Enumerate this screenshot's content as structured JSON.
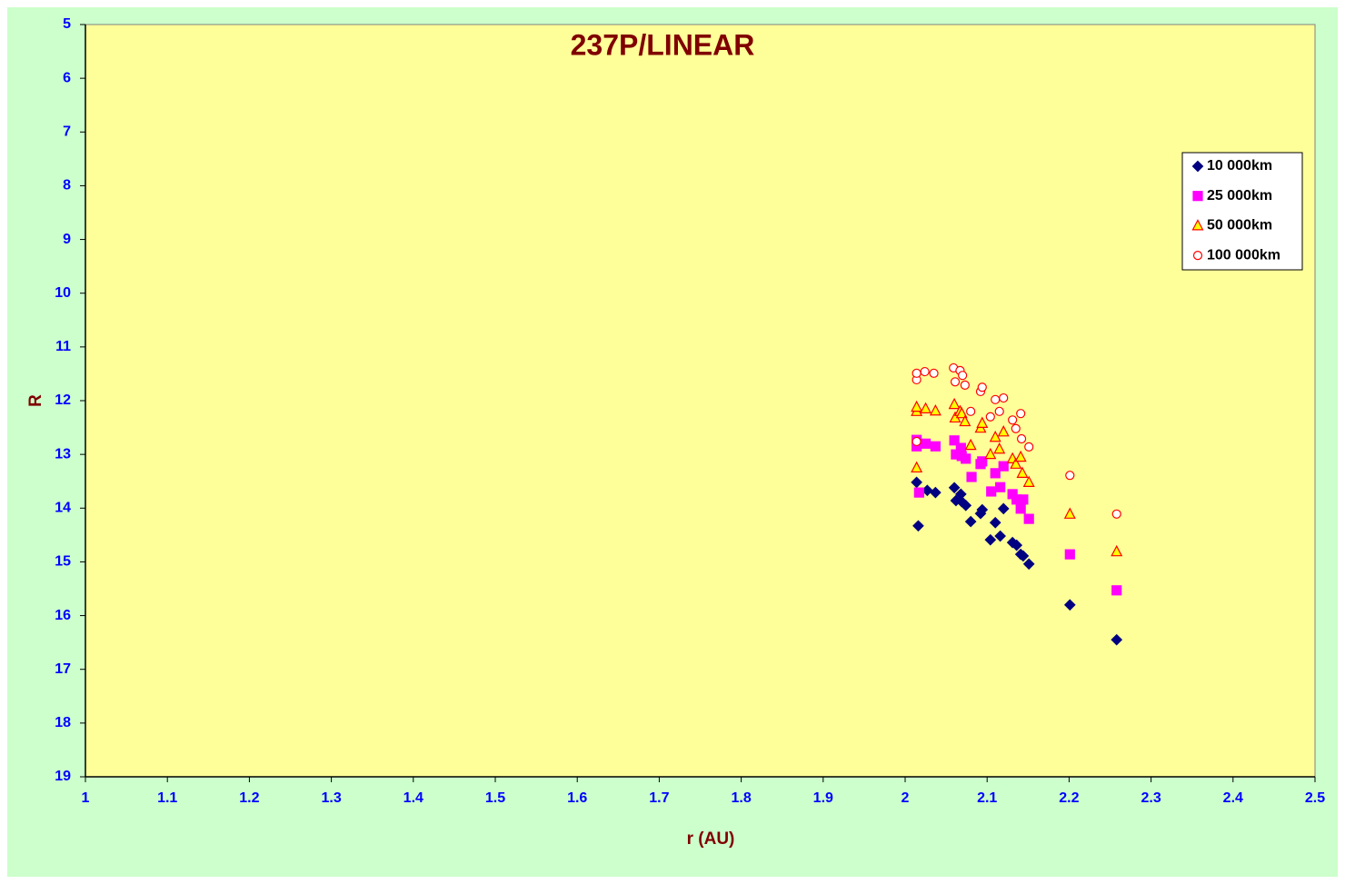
{
  "chart_data": {
    "type": "scatter",
    "title": "237P/LINEAR",
    "xlabel": "r (AU)",
    "ylabel": "R",
    "xlim": [
      1,
      2.5
    ],
    "xticks": [
      1,
      1.1,
      1.2,
      1.3,
      1.4,
      1.5,
      1.6,
      1.7,
      1.8,
      1.9,
      2,
      2.1,
      2.2,
      2.3,
      2.4,
      2.5
    ],
    "ylim": [
      5,
      19
    ],
    "yticks": [
      5,
      6,
      7,
      8,
      9,
      10,
      11,
      12,
      13,
      14,
      15,
      16,
      17,
      18,
      19
    ],
    "y_inverted": true,
    "legend": "upper right",
    "series": [
      {
        "name": "10 000km",
        "marker": "diamond",
        "color": "#000080",
        "edgecolor": "#000080",
        "x": [
          2.014,
          2.016,
          2.027,
          2.037,
          2.06,
          2.062,
          2.068,
          2.069,
          2.074,
          2.08,
          2.092,
          2.094,
          2.104,
          2.11,
          2.116,
          2.12,
          2.131,
          2.136,
          2.141,
          2.144,
          2.151,
          2.201,
          2.258
        ],
        "values": [
          13.52,
          14.33,
          13.67,
          13.71,
          13.62,
          13.86,
          13.74,
          13.88,
          13.95,
          14.25,
          14.1,
          14.03,
          14.59,
          14.27,
          14.52,
          14.01,
          14.64,
          14.69,
          14.86,
          14.89,
          15.04,
          15.8,
          16.45
        ]
      },
      {
        "name": "25 000km",
        "marker": "square",
        "color": "#ff00ff",
        "edgecolor": "#ff00ff",
        "x": [
          2.014,
          2.014,
          2.017,
          2.025,
          2.037,
          2.06,
          2.062,
          2.068,
          2.069,
          2.074,
          2.081,
          2.092,
          2.094,
          2.105,
          2.11,
          2.116,
          2.12,
          2.131,
          2.136,
          2.141,
          2.144,
          2.151,
          2.201,
          2.258
        ],
        "values": [
          12.85,
          12.73,
          13.71,
          12.8,
          12.85,
          12.74,
          13.0,
          12.88,
          13.03,
          13.08,
          13.42,
          13.18,
          13.13,
          13.69,
          13.35,
          13.61,
          13.22,
          13.74,
          13.84,
          14.01,
          13.84,
          14.2,
          14.86,
          15.53
        ]
      },
      {
        "name": "50 000km",
        "marker": "triangle",
        "color": "#ffff00",
        "edgecolor": "#ff0000",
        "x": [
          2.014,
          2.014,
          2.014,
          2.025,
          2.037,
          2.06,
          2.061,
          2.067,
          2.069,
          2.073,
          2.08,
          2.092,
          2.094,
          2.104,
          2.11,
          2.115,
          2.12,
          2.131,
          2.135,
          2.141,
          2.143,
          2.151,
          2.201,
          2.258
        ],
        "values": [
          12.2,
          13.25,
          12.12,
          12.15,
          12.19,
          12.07,
          12.32,
          12.2,
          12.24,
          12.39,
          12.83,
          12.51,
          12.42,
          13.0,
          12.68,
          12.9,
          12.58,
          13.08,
          13.18,
          13.05,
          13.35,
          13.52,
          14.11,
          14.81
        ]
      },
      {
        "name": "100 000km",
        "marker": "circle",
        "color": "#ffffff",
        "edgecolor": "#ff0000",
        "x": [
          2.014,
          2.014,
          2.014,
          2.024,
          2.035,
          2.059,
          2.061,
          2.067,
          2.07,
          2.073,
          2.08,
          2.092,
          2.094,
          2.104,
          2.11,
          2.115,
          2.12,
          2.131,
          2.135,
          2.141,
          2.142,
          2.151,
          2.201,
          2.258
        ],
        "values": [
          11.61,
          11.49,
          12.76,
          11.46,
          11.49,
          11.39,
          11.65,
          11.44,
          11.53,
          11.71,
          12.2,
          11.83,
          11.75,
          12.3,
          11.98,
          12.2,
          11.95,
          12.36,
          12.52,
          12.24,
          12.71,
          12.86,
          13.39,
          14.11
        ]
      }
    ]
  }
}
